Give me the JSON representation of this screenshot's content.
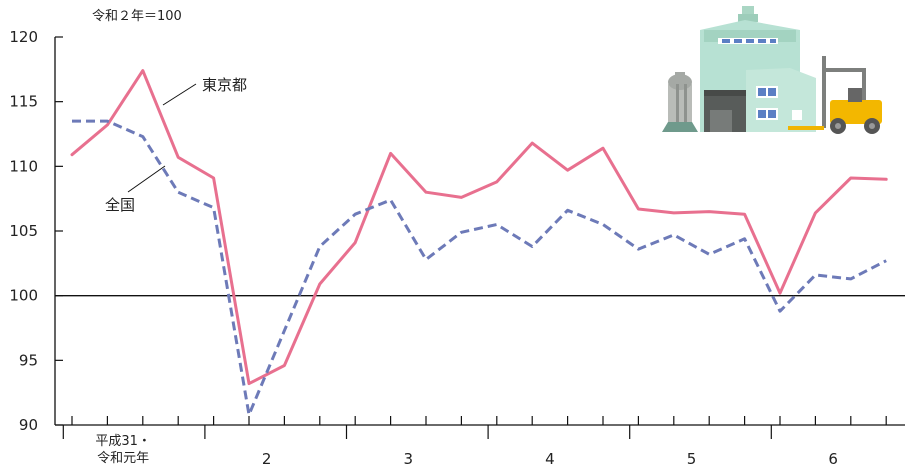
{
  "chart_data": {
    "type": "line",
    "unit_note": "令和２年＝100",
    "ylim": [
      90,
      120
    ],
    "yticks": [
      90,
      95,
      100,
      105,
      110,
      115,
      120
    ],
    "reference_line": 100,
    "x_label_first_line1": "平成31・",
    "x_label_first_line2": "令和元年",
    "x_year_labels": [
      "2",
      "3",
      "4",
      "5",
      "6"
    ],
    "legend_placement": "inline labels",
    "series": [
      {
        "name": "東京都",
        "color": "#e8708f",
        "style": "solid",
        "values": [
          110.9,
          113.2,
          117.4,
          110.7,
          109.1,
          93.2,
          94.6,
          100.9,
          104.1,
          111.0,
          108.0,
          107.6,
          108.8,
          111.8,
          109.7,
          111.4,
          106.7,
          106.4,
          106.5,
          106.3,
          100.2,
          106.4,
          109.1,
          109.0
        ]
      },
      {
        "name": "全国",
        "color": "#6d7ab8",
        "style": "dashed",
        "values": [
          113.5,
          113.5,
          112.3,
          108.0,
          106.8,
          90.8,
          97.3,
          103.8,
          106.3,
          107.4,
          102.8,
          104.9,
          105.5,
          103.8,
          106.6,
          105.5,
          103.6,
          104.7,
          103.2,
          104.4,
          98.8,
          101.6,
          101.3,
          102.7
        ]
      }
    ]
  },
  "illustration": {
    "icon": "factory-forklift-icon"
  }
}
